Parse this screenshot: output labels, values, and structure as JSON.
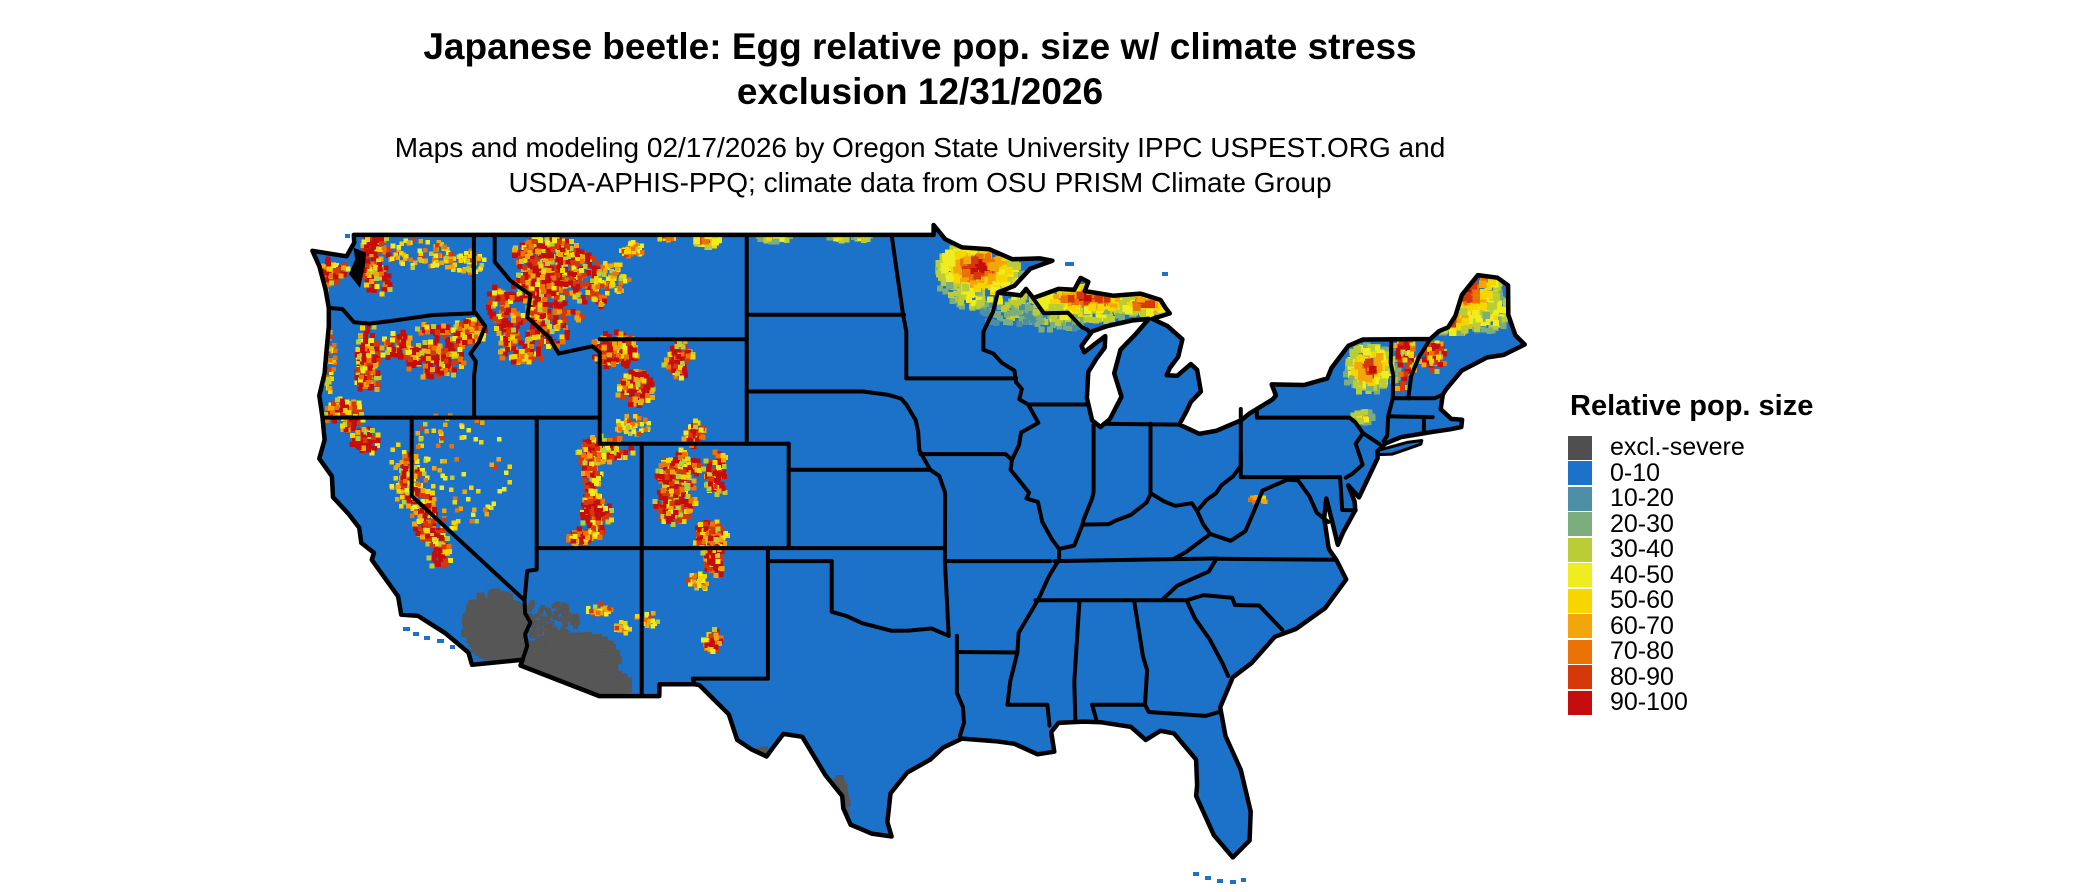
{
  "title": {
    "line1": "Japanese beetle: Egg relative pop. size w/ climate stress",
    "line2": "exclusion 12/31/2026"
  },
  "subtitle": {
    "line1": "Maps and modeling 02/17/2026 by Oregon State University IPPC USPEST.ORG and",
    "line2": "USDA-APHIS-PPQ; climate data from OSU PRISM Climate Group"
  },
  "legend": {
    "title": "Relative pop. size",
    "entries": [
      {
        "label": "excl.-severe",
        "color": "#4f4f4f"
      },
      {
        "label": "0-10",
        "color": "#1c72c8"
      },
      {
        "label": "10-20",
        "color": "#4d8ea6"
      },
      {
        "label": "20-30",
        "color": "#7cad7e"
      },
      {
        "label": "30-40",
        "color": "#bacd36"
      },
      {
        "label": "40-50",
        "color": "#eded20"
      },
      {
        "label": "50-60",
        "color": "#f7d600"
      },
      {
        "label": "60-70",
        "color": "#f2a60b"
      },
      {
        "label": "70-80",
        "color": "#eb7205"
      },
      {
        "label": "80-90",
        "color": "#d63809"
      },
      {
        "label": "90-100",
        "color": "#c60d0d"
      }
    ]
  },
  "map": {
    "type": "raster-classified-map",
    "region": "contiguous United States",
    "base_fill": "#1c72c8",
    "exclusion_fill": "#565656",
    "boundary_color": "#000000",
    "water_fill": "#ffffff",
    "background": "#ffffff"
  }
}
